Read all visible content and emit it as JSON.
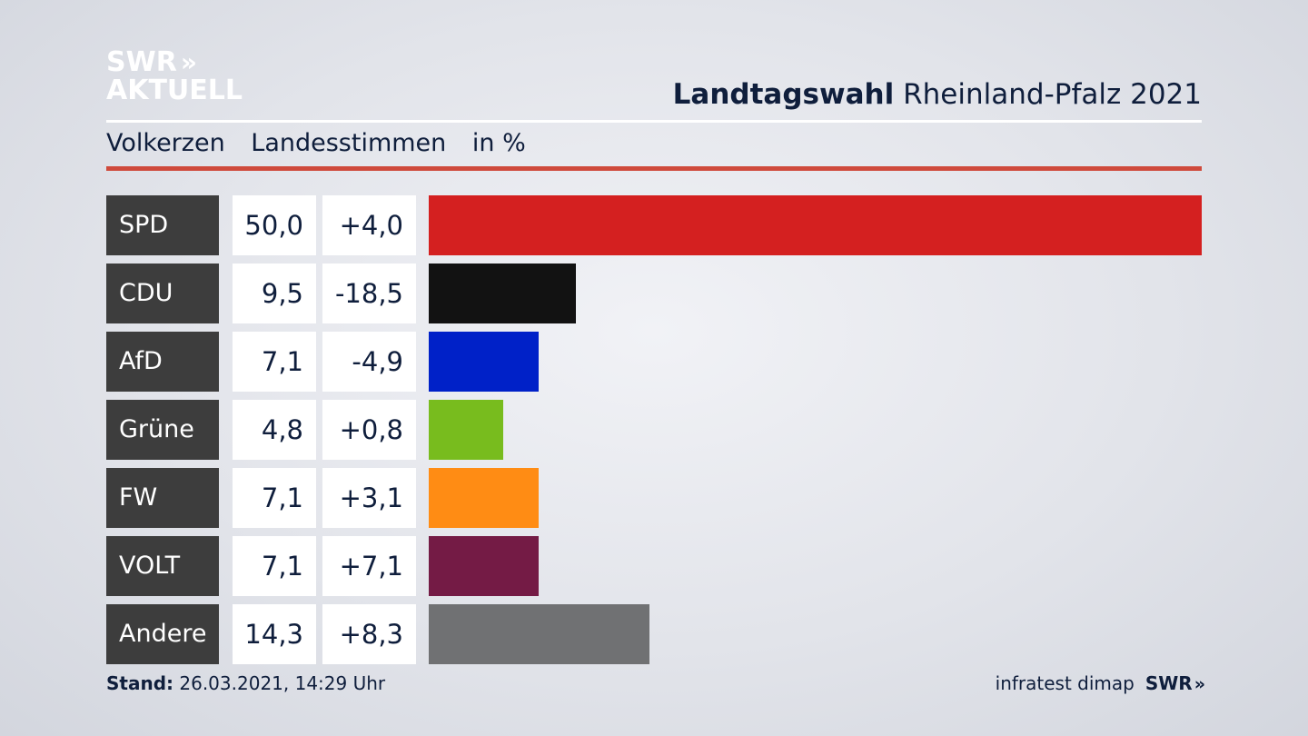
{
  "logo": {
    "line1": "SWR",
    "line2": "AKTUELL",
    "chevron": "»"
  },
  "header": {
    "title_bold": "Landtagswahl",
    "title_rest": "Rheinland-Pfalz 2021"
  },
  "subheader": {
    "place": "Volkerzen",
    "measure": "Landesstimmen",
    "unit": "in %"
  },
  "colors": {
    "accent_red_rule": "#cf4a3c",
    "name_cell_bg": "#3d3d3d"
  },
  "chart_data": {
    "type": "bar",
    "orientation": "horizontal",
    "categories": [
      "SPD",
      "CDU",
      "AfD",
      "Grüne",
      "FW",
      "VOLT",
      "Andere"
    ],
    "values": [
      50.0,
      9.5,
      7.1,
      4.8,
      7.1,
      7.1,
      14.3
    ],
    "value_labels": [
      "50,0",
      "9,5",
      "7,1",
      "4,8",
      "7,1",
      "7,1",
      "14,3"
    ],
    "diff_labels": [
      "+4,0",
      "-18,5",
      "-4,9",
      "+0,8",
      "+3,1",
      "+7,1",
      "+8,3"
    ],
    "bar_colors": [
      "#d42020",
      "#121212",
      "#0021c8",
      "#78bc1e",
      "#ff8c14",
      "#741b45",
      "#707173"
    ],
    "xlim": [
      0,
      50
    ]
  },
  "footer": {
    "stand_label": "Stand:",
    "stand_value": "26.03.2021, 14:29 Uhr",
    "source": "infratest dimap",
    "brand": "SWR",
    "brand_chevron": "»"
  }
}
